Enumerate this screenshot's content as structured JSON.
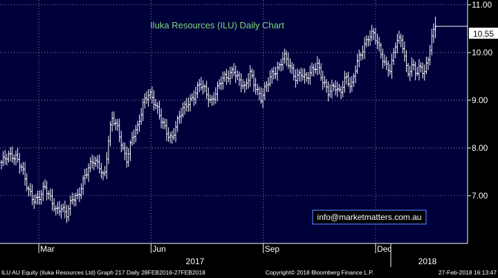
{
  "chart_data": {
    "type": "ohlc",
    "title": "Iluka Resources (ILU) Daily Chart",
    "y_axis": {
      "ticks": [
        "11.00",
        "10.00",
        "9.00",
        "8.00",
        "7.00"
      ],
      "tick_values": [
        11,
        10,
        9,
        8,
        7
      ],
      "ylim": [
        6.0,
        11.1
      ],
      "position": "right"
    },
    "x_axis": {
      "ticks": [
        {
          "label": "Mar",
          "month_index": 1
        },
        {
          "label": "Jun",
          "month_index": 4
        },
        {
          "label": "Sep",
          "month_index": 7
        },
        {
          "label": "Dec",
          "month_index": 10
        }
      ],
      "years": [
        "2017",
        "2018"
      ],
      "xlim_months": [
        0,
        12.2
      ]
    },
    "last_value": "10.55",
    "series_closes": [
      [
        0.0,
        7.7
      ],
      [
        0.2,
        7.8
      ],
      [
        0.4,
        7.85
      ],
      [
        0.55,
        7.6
      ],
      [
        0.7,
        7.1
      ],
      [
        0.85,
        6.9
      ],
      [
        1.0,
        7.0
      ],
      [
        1.15,
        7.2
      ],
      [
        1.3,
        6.9
      ],
      [
        1.45,
        6.7
      ],
      [
        1.6,
        6.8
      ],
      [
        1.75,
        6.6
      ],
      [
        1.9,
        6.9
      ],
      [
        2.05,
        7.0
      ],
      [
        2.2,
        7.4
      ],
      [
        2.35,
        7.6
      ],
      [
        2.5,
        7.7
      ],
      [
        2.65,
        7.6
      ],
      [
        2.75,
        7.4
      ],
      [
        2.85,
        8.1
      ],
      [
        2.95,
        8.6
      ],
      [
        3.1,
        8.4
      ],
      [
        3.25,
        8.0
      ],
      [
        3.35,
        7.8
      ],
      [
        3.5,
        8.2
      ],
      [
        3.65,
        8.4
      ],
      [
        3.8,
        9.0
      ],
      [
        3.95,
        9.2
      ],
      [
        4.1,
        8.9
      ],
      [
        4.25,
        8.6
      ],
      [
        4.4,
        8.4
      ],
      [
        4.55,
        8.2
      ],
      [
        4.7,
        8.5
      ],
      [
        4.85,
        8.8
      ],
      [
        5.0,
        9.0
      ],
      [
        5.15,
        9.1
      ],
      [
        5.3,
        9.3
      ],
      [
        5.45,
        9.2
      ],
      [
        5.6,
        9.0
      ],
      [
        5.75,
        9.2
      ],
      [
        5.9,
        9.4
      ],
      [
        6.05,
        9.5
      ],
      [
        6.2,
        9.7
      ],
      [
        6.35,
        9.4
      ],
      [
        6.5,
        9.2
      ],
      [
        6.65,
        9.6
      ],
      [
        6.8,
        9.3
      ],
      [
        6.95,
        9.0
      ],
      [
        7.1,
        9.3
      ],
      [
        7.25,
        9.6
      ],
      [
        7.4,
        9.7
      ],
      [
        7.55,
        9.9
      ],
      [
        7.7,
        9.7
      ],
      [
        7.85,
        9.5
      ],
      [
        8.0,
        9.6
      ],
      [
        8.15,
        9.4
      ],
      [
        8.3,
        9.6
      ],
      [
        8.45,
        9.8
      ],
      [
        8.6,
        9.4
      ],
      [
        8.75,
        9.1
      ],
      [
        8.9,
        9.3
      ],
      [
        9.05,
        9.2
      ],
      [
        9.2,
        9.5
      ],
      [
        9.35,
        9.2
      ],
      [
        9.5,
        9.8
      ],
      [
        9.65,
        10.1
      ],
      [
        9.8,
        10.3
      ],
      [
        9.95,
        10.35
      ],
      [
        10.1,
        10.1
      ],
      [
        10.25,
        9.8
      ],
      [
        10.4,
        9.6
      ],
      [
        10.55,
        10.2
      ],
      [
        10.7,
        10.3
      ],
      [
        10.85,
        9.6
      ],
      [
        11.0,
        9.7
      ],
      [
        11.1,
        9.5
      ],
      [
        11.2,
        9.7
      ],
      [
        11.3,
        9.6
      ],
      [
        11.4,
        9.9
      ],
      [
        11.5,
        10.3
      ],
      [
        11.6,
        10.55
      ]
    ]
  },
  "annotations": {
    "contact": "info@marketmatters.com.au"
  },
  "footer": {
    "left": "ILU AU Equity (Iluka Resources Ltd) Graph 217  Daily 28FEB2016-27FEB2018",
    "center": "Copyright© 2018 Bloomberg Finance L.P.",
    "right": "27-Feb-2018 16:13:47"
  },
  "colors": {
    "plot_bg": "#00003a",
    "bars": "#ffffff",
    "title": "#7fd87f",
    "badge_bg": "#ffffff",
    "contact_border": "#4a7fff"
  }
}
